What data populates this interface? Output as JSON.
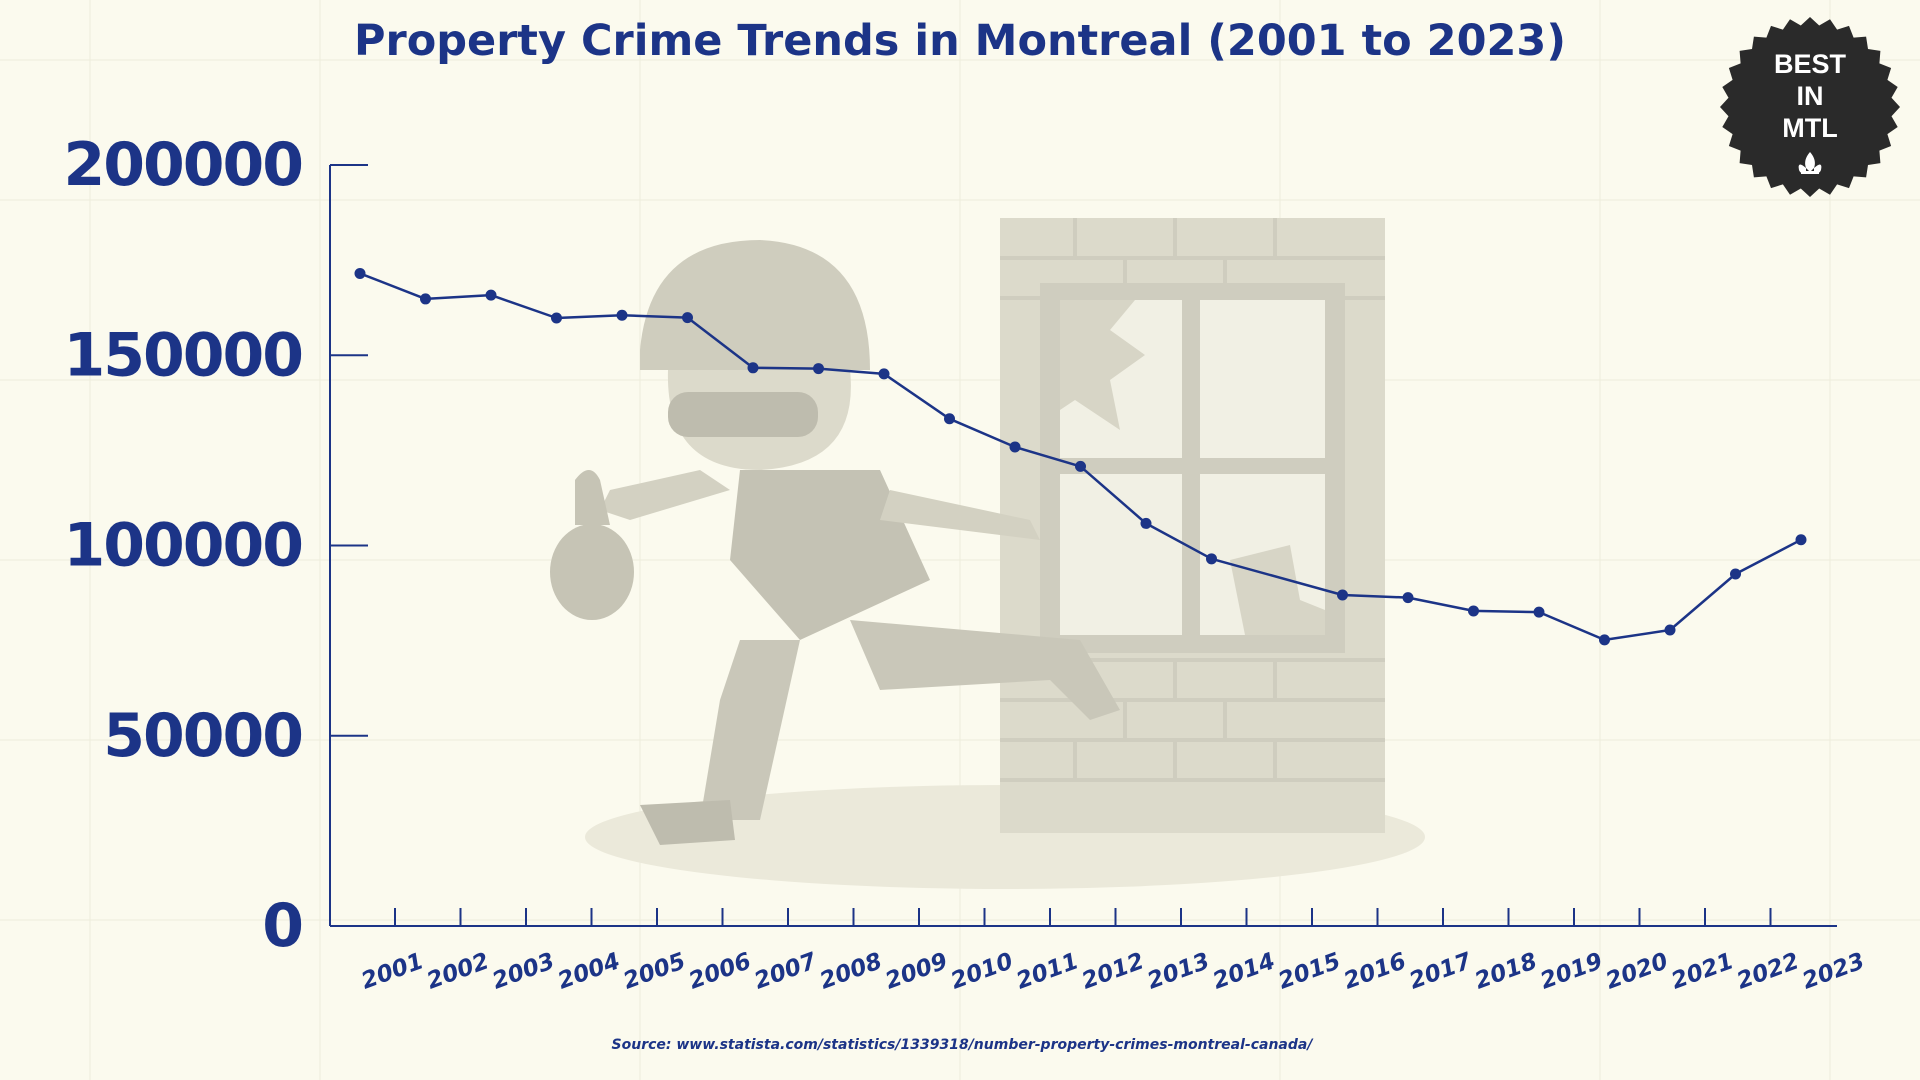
{
  "chart_data": {
    "type": "line",
    "title": "Property Crime Trends in Montreal (2001 to 2023)",
    "xlabel": "",
    "ylabel": "",
    "ylim": [
      0,
      200000
    ],
    "yticks": [
      "0",
      "50000",
      "100000",
      "150000",
      "200000"
    ],
    "categories": [
      "2001",
      "2002",
      "2003",
      "2004",
      "2005",
      "2006",
      "2007",
      "2008",
      "2009",
      "2010",
      "2011",
      "2012",
      "2013",
      "2014",
      "2015",
      "2016",
      "2017",
      "2018",
      "2019",
      "2020",
      "2021",
      "2022",
      "2023"
    ],
    "values": [
      171500,
      164800,
      165800,
      159800,
      160500,
      159900,
      146700,
      146500,
      145100,
      133300,
      125900,
      120800,
      105800,
      96500,
      null,
      87000,
      86300,
      82800,
      82500,
      75200,
      77800,
      92500,
      101500
    ],
    "grid": false,
    "legend": "none",
    "source": "Source: www.statista.com/statistics/1339318/number-property-crimes-montreal-canada/"
  },
  "badge": {
    "lines": [
      "BEST",
      "IN",
      "MTL"
    ],
    "icon": "fleur-de-lis-icon"
  },
  "colors": {
    "background": "#fbfaee",
    "accent": "#1c3487",
    "badge": "#2a2a2a",
    "illustration": "#c9c7b8"
  }
}
